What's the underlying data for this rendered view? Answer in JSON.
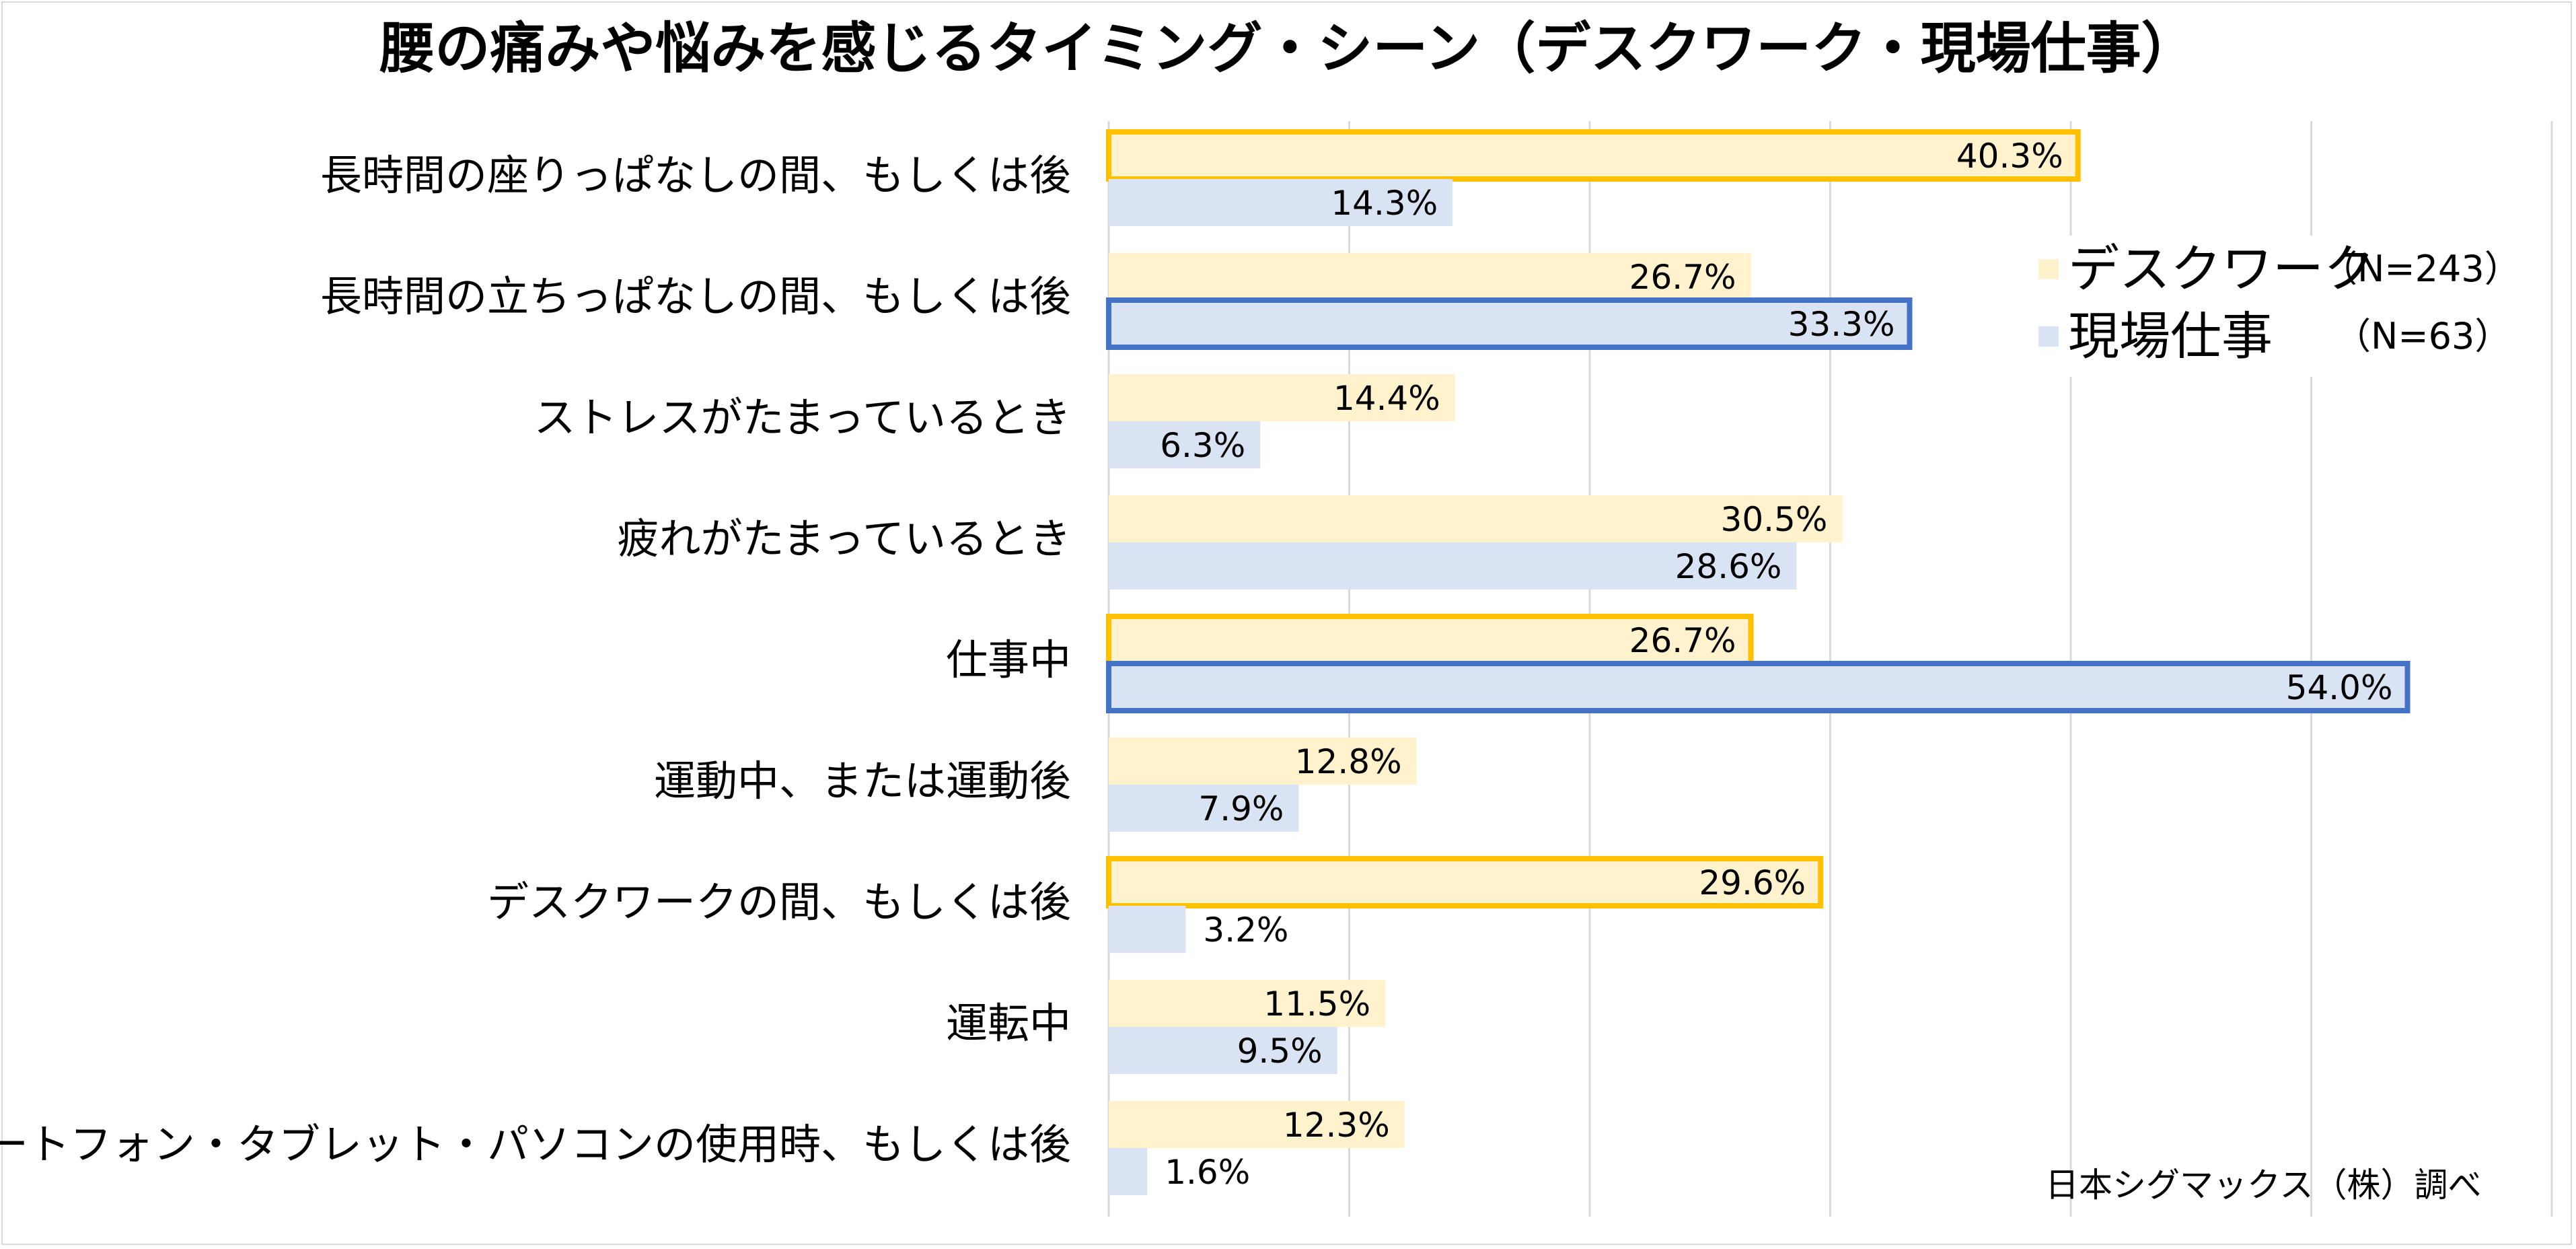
{
  "title": "腰の痛みや悩みを感じるタイミング・シーン（デスクワーク・現場仕事）",
  "source": "日本シグマックス（株）調べ",
  "legend": [
    {
      "name": "デスクワーク",
      "n": "（N=243）"
    },
    {
      "name": "現場仕事",
      "n": "（N=63）"
    }
  ],
  "chart_data": {
    "type": "bar",
    "orientation": "horizontal",
    "categories": [
      "長時間の座りっぱなしの間、もしくは後",
      "長時間の立ちっぱなしの間、もしくは後",
      "ストレスがたまっているとき",
      "疲れがたまっているとき",
      "仕事中",
      "運動中、または運動後",
      "デスクワークの間、もしくは後",
      "運転中",
      "スマートフォン・タブレット・パソコンの使用時、もしくは後"
    ],
    "series": [
      {
        "name": "デスクワーク",
        "values": [
          40.3,
          26.7,
          14.4,
          30.5,
          26.7,
          12.8,
          29.6,
          11.5,
          12.3
        ],
        "highlighted": [
          true,
          false,
          false,
          false,
          true,
          false,
          true,
          false,
          false
        ]
      },
      {
        "name": "現場仕事",
        "values": [
          14.3,
          33.3,
          6.3,
          28.6,
          54.0,
          7.9,
          3.2,
          9.5,
          1.6
        ],
        "highlighted": [
          false,
          true,
          false,
          false,
          true,
          false,
          false,
          false,
          false
        ]
      }
    ],
    "value_suffix": "%",
    "xlim": [
      0,
      60
    ],
    "grid": true,
    "legend_position": "right",
    "colors": {
      "desk": "#fff2cc",
      "field": "#dae3f3",
      "desk_highlight": "#ffc000",
      "field_highlight": "#4472c4",
      "grid": "#d9d9d9"
    }
  }
}
